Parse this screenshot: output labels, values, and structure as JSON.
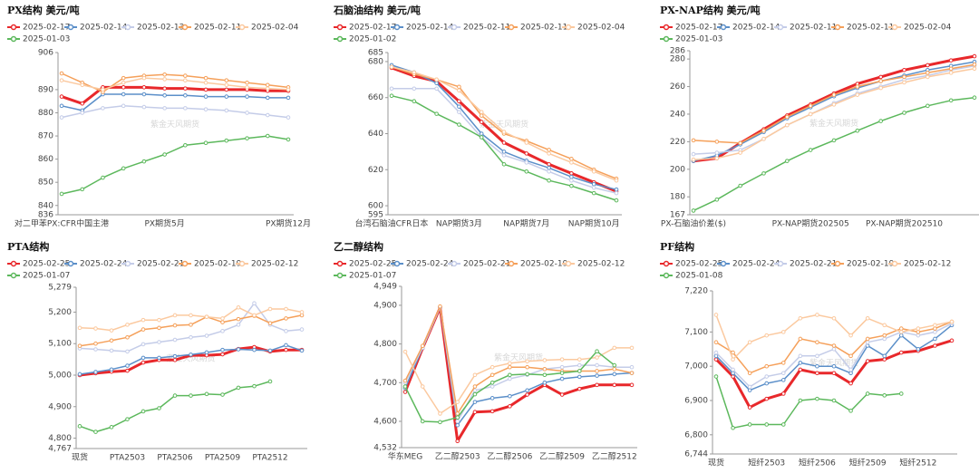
{
  "chart_data": [
    {
      "type": "line",
      "title": "PX结构 美元/吨",
      "watermark": "紫金天风期货",
      "categories": [
        "对二甲苯PX:CFR中国主港",
        null,
        null,
        null,
        null,
        "PX期货5月",
        null,
        null,
        null,
        null,
        null,
        "PX期货12月"
      ],
      "ylim": [
        836,
        906
      ],
      "yticks": [
        836,
        840,
        850,
        860,
        870,
        880,
        890,
        906
      ],
      "series": [
        {
          "name": "2025-02-17",
          "color": "#e8282b",
          "values": [
            887,
            884,
            891,
            891,
            891,
            890.5,
            890.5,
            890,
            890,
            890,
            889.5,
            889.5
          ]
        },
        {
          "name": "2025-02-14",
          "color": "#5b8fc9",
          "values": [
            883,
            881,
            888,
            888,
            888,
            887.5,
            887.5,
            887,
            887,
            887,
            886.5,
            886.5
          ]
        },
        {
          "name": "2025-02-13",
          "color": "#c4cce8",
          "values": [
            878,
            880,
            882,
            883,
            882.5,
            882,
            882,
            881.5,
            881,
            880,
            879,
            878
          ]
        },
        {
          "name": "2025-02-11",
          "color": "#f5a05a",
          "values": [
            897,
            893,
            889,
            895,
            896,
            896.5,
            896,
            895,
            894,
            893,
            892,
            891
          ]
        },
        {
          "name": "2025-02-04",
          "color": "#fbc99f",
          "values": [
            894,
            892,
            890,
            893,
            895,
            894.5,
            894,
            893,
            892,
            891,
            890.5,
            890
          ]
        },
        {
          "name": "2025-01-03",
          "color": "#5cb85c",
          "values": [
            845,
            847,
            852,
            856,
            859,
            862,
            866,
            867,
            868,
            869,
            870,
            868.5
          ]
        }
      ]
    },
    {
      "type": "line",
      "title": "石脑油结构 美元/吨",
      "watermark": "紫金天风期货",
      "categories": [
        "台湾石脑油CFR日本",
        null,
        null,
        "NAP期货3月",
        null,
        null,
        "NAP期货7月",
        null,
        null,
        "NAP期货10月",
        null
      ],
      "ylim": [
        595,
        685
      ],
      "yticks": [
        595,
        600,
        620,
        640,
        660,
        680,
        685
      ],
      "series": [
        {
          "name": "2025-02-17",
          "color": "#e8282b",
          "values": [
            676.5,
            672,
            669,
            658,
            646.5,
            635,
            629,
            623,
            618,
            613,
            608
          ]
        },
        {
          "name": "2025-02-14",
          "color": "#5b8fc9",
          "values": [
            678,
            674,
            668,
            655,
            640,
            630,
            625,
            621,
            616,
            612,
            609
          ]
        },
        {
          "name": "2025-02-11",
          "color": "#c4cce8",
          "values": [
            665,
            665,
            665,
            652,
            638,
            628,
            624,
            619,
            614,
            610,
            607
          ]
        },
        {
          "name": "2025-02-11",
          "color": "#f5a05a",
          "values": [
            677,
            673,
            670,
            666,
            650,
            640,
            636,
            631,
            626,
            620,
            615
          ]
        },
        {
          "name": "2025-02-04",
          "color": "#fbc99f",
          "values": [
            677,
            674,
            670,
            664,
            652,
            641,
            635,
            629,
            624,
            619,
            614
          ]
        },
        {
          "name": "2025-01-02",
          "color": "#5cb85c",
          "values": [
            661,
            658,
            651,
            645,
            638,
            623,
            619,
            614,
            611,
            607,
            603
          ]
        }
      ]
    },
    {
      "type": "line",
      "title": "PX-NAP结构 美元/吨",
      "watermark": "紫金天风期货",
      "categories": [
        "PX-石脑油价差($)",
        null,
        null,
        null,
        null,
        "PX-NAP期货202505",
        null,
        null,
        null,
        "PX-NAP期货202510",
        null,
        null,
        null
      ],
      "ylim": [
        167,
        286
      ],
      "yticks": [
        167,
        180,
        200,
        220,
        240,
        260,
        280,
        286
      ],
      "series": [
        {
          "name": "2025-02-17",
          "color": "#e8282b",
          "values": [
            206,
            208,
            219,
            229,
            239,
            247,
            255,
            262,
            267,
            272,
            275.5,
            279,
            282
          ]
        },
        {
          "name": "2025-02-14",
          "color": "#5b8fc9",
          "values": [
            206,
            210,
            218,
            227,
            237,
            245,
            253,
            259,
            264,
            268,
            272,
            275,
            278
          ]
        },
        {
          "name": "2025-02-11",
          "color": "#c4cce8",
          "values": [
            211,
            212,
            214,
            222,
            232,
            240,
            248,
            255,
            260,
            265,
            268,
            272,
            275
          ]
        },
        {
          "name": "2025-02-11",
          "color": "#f5a05a",
          "values": [
            221,
            220,
            219,
            228,
            238,
            246,
            254,
            260,
            264,
            267,
            270,
            273,
            276
          ]
        },
        {
          "name": "2025-02-04",
          "color": "#fbc99f",
          "values": [
            207,
            208,
            212,
            222,
            232,
            240,
            247,
            254,
            259,
            263,
            267,
            270,
            273
          ]
        },
        {
          "name": "2025-01-03",
          "color": "#5cb85c",
          "values": [
            170,
            178,
            188,
            197,
            206,
            214,
            221,
            228,
            235,
            241,
            246,
            250,
            252
          ]
        }
      ]
    },
    {
      "type": "line",
      "title": "PTA结构",
      "watermark": "紫金天风期货",
      "categories": [
        "现货",
        null,
        null,
        "PTA2503",
        null,
        null,
        "PTA2506",
        null,
        null,
        "PTA2509",
        null,
        null,
        "PTA2512",
        null,
        null
      ],
      "ylim": [
        4767,
        5279
      ],
      "yticks": [
        {
          "value": 4767,
          "label": "4,767"
        },
        {
          "value": 4800,
          "label": "4,800"
        },
        {
          "value": 4900,
          "label": "4,900"
        },
        {
          "value": 5000,
          "label": "5,000"
        },
        {
          "value": 5100,
          "label": "5,100"
        },
        {
          "value": 5200,
          "label": "5,200"
        },
        {
          "value": 5279,
          "label": "5,279"
        }
      ],
      "series": [
        {
          "name": "2025-02-25",
          "color": "#e8282b",
          "values": [
            5000,
            5006,
            5011,
            5014,
            5040,
            5048,
            5048,
            5063,
            5063,
            5066,
            5083,
            5089,
            5075,
            5080,
            5080
          ]
        },
        {
          "name": "2025-02-24",
          "color": "#5b8fc9",
          "values": [
            5003,
            5010,
            5018,
            5030,
            5055,
            5055,
            5060,
            5065,
            5072,
            5080,
            5082,
            5080,
            5078,
            5095,
            5078
          ]
        },
        {
          "name": "2025-02-21",
          "color": "#c4cce8",
          "values": [
            5085,
            5082,
            5078,
            5075,
            5098,
            5105,
            5112,
            5120,
            5125,
            5140,
            5160,
            5228,
            5160,
            5140,
            5145
          ]
        },
        {
          "name": "2025-02-19",
          "color": "#f5a05a",
          "values": [
            5093,
            5100,
            5110,
            5120,
            5145,
            5150,
            5158,
            5160,
            5185,
            5168,
            5178,
            5188,
            5165,
            5180,
            5190
          ]
        },
        {
          "name": "2025-02-12",
          "color": "#fbc99f",
          "values": [
            5150,
            5148,
            5142,
            5160,
            5175,
            5175,
            5190,
            5190,
            5185,
            5180,
            5215,
            5190,
            5210,
            5210,
            5200
          ]
        },
        {
          "name": "2025-01-07",
          "color": "#5cb85c",
          "values": [
            4838,
            4820,
            4835,
            4860,
            4885,
            4895,
            4935,
            4935,
            4940,
            4938,
            4960,
            4965,
            4980,
            null,
            null
          ]
        }
      ]
    },
    {
      "type": "line",
      "title": "乙二醇结构",
      "watermark": "紫金天风期货",
      "categories": [
        "华东MEG",
        null,
        null,
        "乙二醇2503",
        null,
        null,
        "乙二醇2506",
        null,
        null,
        "乙二醇2509",
        null,
        null,
        "乙二醇2512",
        null
      ],
      "ylim": [
        4532,
        4949
      ],
      "yticks": [
        {
          "value": 4532,
          "label": "4,532"
        },
        {
          "value": 4600,
          "label": "4,600"
        },
        {
          "value": 4700,
          "label": "4,700"
        },
        {
          "value": 4800,
          "label": "4,800"
        },
        {
          "value": 4900,
          "label": "4,900"
        },
        {
          "value": 4949,
          "label": "4,949"
        }
      ],
      "series": [
        {
          "name": "2025-02-25",
          "color": "#e8282b",
          "values": [
            4676,
            4789,
            4894,
            4549,
            4624,
            4626,
            4639,
            4669,
            4694,
            4669,
            4684,
            4694,
            4694,
            4694
          ]
        },
        {
          "name": "2025-02-24",
          "color": "#5b8fc9",
          "values": [
            4686,
            4790,
            4895,
            4590,
            4650,
            4660,
            4665,
            4680,
            4700,
            4710,
            4715,
            4718,
            4722,
            4725
          ]
        },
        {
          "name": "2025-02-21",
          "color": "#c4cce8",
          "values": [
            4700,
            4790,
            4895,
            4600,
            4680,
            4690,
            4710,
            4720,
            4735,
            4740,
            4745,
            4745,
            4740,
            4740
          ]
        },
        {
          "name": "2025-02-19",
          "color": "#f5a05a",
          "values": [
            4705,
            4795,
            4897,
            4620,
            4690,
            4720,
            4740,
            4740,
            4735,
            4730,
            4730,
            4730,
            4735,
            4725
          ]
        },
        {
          "name": "2025-02-12",
          "color": "#fbc99f",
          "values": [
            4780,
            4690,
            4620,
            4650,
            4720,
            4740,
            4750,
            4755,
            4758,
            4760,
            4760,
            4765,
            4790,
            4790
          ]
        },
        {
          "name": "2025-01-07",
          "color": "#5cb85c",
          "values": [
            4690,
            4600,
            4598,
            4610,
            4670,
            4700,
            4720,
            4722,
            4720,
            4725,
            4730,
            4781,
            4745,
            null
          ]
        }
      ]
    },
    {
      "type": "line",
      "title": "PF结构",
      "watermark": "紫金天风期货",
      "categories": [
        "现货",
        null,
        null,
        "短纤2503",
        null,
        null,
        "短纤2506",
        null,
        null,
        "短纤2509",
        null,
        null,
        "短纤2512",
        null,
        null
      ],
      "ylim": [
        6744,
        7220
      ],
      "yticks": [
        {
          "value": 6744,
          "label": "6,744"
        },
        {
          "value": 6800,
          "label": "6,800"
        },
        {
          "value": 6900,
          "label": "6,900"
        },
        {
          "value": 7000,
          "label": "7,000"
        },
        {
          "value": 7100,
          "label": "7,100"
        },
        {
          "value": 7220,
          "label": "7,220"
        }
      ],
      "series": [
        {
          "name": "2025-02-25",
          "color": "#e8282b",
          "values": [
            7020,
            6970,
            6880,
            6905,
            6920,
            6990,
            6980,
            6980,
            6950,
            7015,
            7020,
            7040,
            7045,
            7060,
            7075
          ]
        },
        {
          "name": "2025-02-24",
          "color": "#5b8fc9",
          "values": [
            7030,
            6980,
            6930,
            6950,
            6960,
            7010,
            7000,
            7000,
            6980,
            7060,
            7030,
            7090,
            7050,
            7080,
            7120
          ]
        },
        {
          "name": "2025-02-21",
          "color": "#c4cce8",
          "values": [
            7040,
            6990,
            6940,
            6970,
            6980,
            7030,
            7030,
            7050,
            6990,
            7070,
            7080,
            7100,
            7090,
            7100,
            7125
          ]
        },
        {
          "name": "2025-02-19",
          "color": "#f5a05a",
          "values": [
            7070,
            7040,
            6980,
            7000,
            7010,
            7080,
            7070,
            7060,
            7030,
            7080,
            7090,
            7110,
            7100,
            7110,
            7130
          ]
        },
        {
          "name": "2025-02-12",
          "color": "#fbc99f",
          "values": [
            7150,
            7020,
            7070,
            7090,
            7100,
            7140,
            7150,
            7140,
            7090,
            7140,
            7120,
            7100,
            7110,
            7120,
            7130
          ]
        },
        {
          "name": "2025-01-08",
          "color": "#5cb85c",
          "values": [
            6970,
            6820,
            6830,
            6830,
            6830,
            6900,
            6905,
            6900,
            6870,
            6920,
            6915,
            6920,
            null,
            null,
            null
          ]
        }
      ]
    }
  ]
}
